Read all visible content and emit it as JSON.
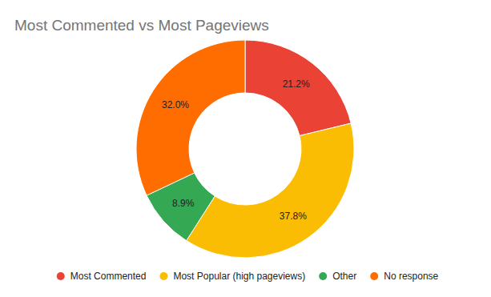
{
  "chart_data": {
    "type": "pie",
    "title": "Most Commented vs Most Pageviews",
    "categories": [
      "Most Commented",
      "Most Popular (high pageviews)",
      "Other",
      "No response"
    ],
    "values": [
      21.2,
      37.8,
      8.9,
      32.0
    ],
    "value_labels": [
      "21.2%",
      "37.8%",
      "8.9%",
      "32.0%"
    ],
    "colors": [
      "#ea4335",
      "#fbbc04",
      "#34a853",
      "#ff6d01"
    ],
    "data_labels": true,
    "legend": "bottom"
  }
}
